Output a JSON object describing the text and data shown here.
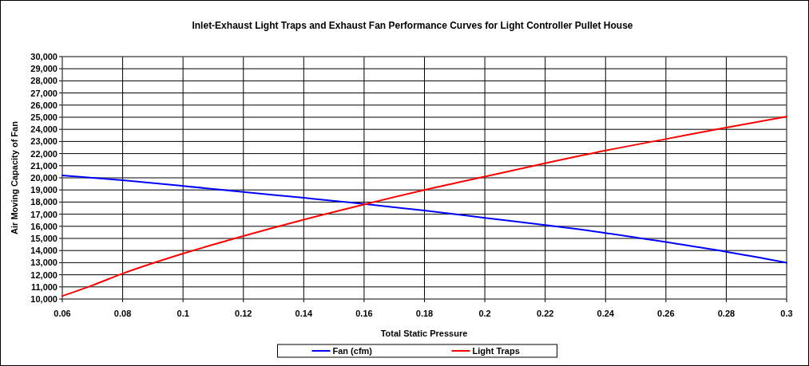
{
  "chart_data": {
    "type": "line",
    "title": "Inlet-Exhaust Light Traps and Exhaust Fan Performance Curves for Light Controller Pullet House",
    "xlabel": "Total Static Pressure",
    "ylabel": "Air Moving Capacity of Fan",
    "x": [
      0.06,
      0.08,
      0.1,
      0.12,
      0.14,
      0.16,
      0.18,
      0.2,
      0.22,
      0.24,
      0.26,
      0.28,
      0.3
    ],
    "series": [
      {
        "name": "Fan (cfm)",
        "color": "#0000ff",
        "values": [
          20200,
          19800,
          19330,
          18830,
          18350,
          17850,
          17300,
          16700,
          16100,
          15450,
          14700,
          13900,
          13000
        ]
      },
      {
        "name": "Light Traps",
        "color": "#ff0000",
        "x": [
          0.06,
          0.07,
          0.08,
          0.1,
          0.12,
          0.14,
          0.16,
          0.18,
          0.2,
          0.22,
          0.24,
          0.26,
          0.28,
          0.3
        ],
        "values": [
          10250,
          11130,
          12100,
          13750,
          15200,
          16550,
          17800,
          19000,
          20100,
          21200,
          22250,
          23200,
          24150,
          25050
        ]
      }
    ],
    "xlim": [
      0.06,
      0.3
    ],
    "xticks": [
      0.06,
      0.08,
      0.1,
      0.12,
      0.14,
      0.16,
      0.18,
      0.2,
      0.22,
      0.24,
      0.26,
      0.28,
      0.3
    ],
    "ylim": [
      10000,
      30000
    ],
    "yticks": [
      {
        "value": 10000,
        "label": "10,000"
      },
      {
        "value": 11000,
        "label": "11,000"
      },
      {
        "value": 12000,
        "label": "12,000"
      },
      {
        "value": 13000,
        "label": "13,000"
      },
      {
        "value": 14000,
        "label": "14,000"
      },
      {
        "value": 15000,
        "label": "15,000"
      },
      {
        "value": 16000,
        "label": "16,000"
      },
      {
        "value": 17000,
        "label": "17,000"
      },
      {
        "value": 18000,
        "label": "18,000"
      },
      {
        "value": 19000,
        "label": "19,000"
      },
      {
        "value": 20000,
        "label": "20,000"
      },
      {
        "value": 21000,
        "label": "21,000"
      },
      {
        "value": 22000,
        "label": "22,000"
      },
      {
        "value": 23000,
        "label": "23,000"
      },
      {
        "value": 24000,
        "label": "24,000"
      },
      {
        "value": 25000,
        "label": "25,000"
      },
      {
        "value": 26000,
        "label": "26,000"
      },
      {
        "value": 27000,
        "label": "27,000"
      },
      {
        "value": 28000,
        "label": "28,000"
      },
      {
        "value": 29000,
        "label": "29,000"
      },
      {
        "value": 30000,
        "label": "30,000"
      }
    ],
    "grid": true,
    "legend": "bottom",
    "marker": "none",
    "line_style": "solid"
  }
}
